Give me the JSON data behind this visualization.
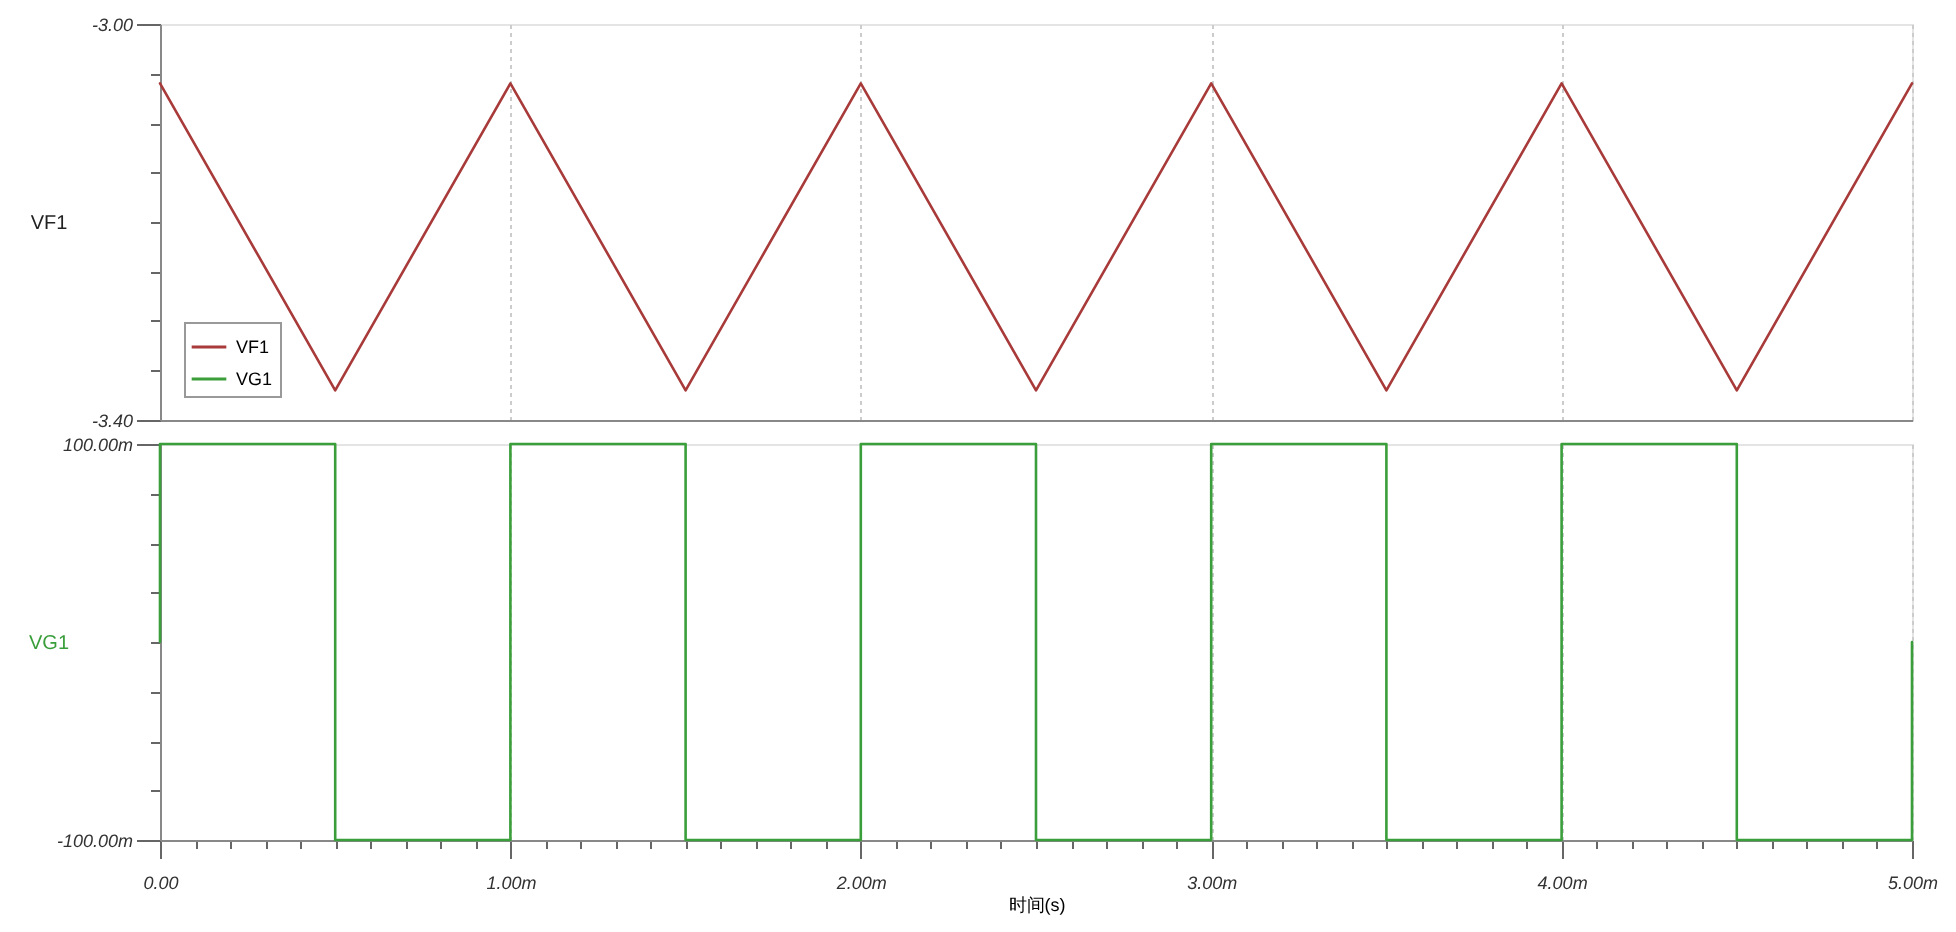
{
  "chart_data": [
    {
      "type": "line",
      "ylabel": "VF1",
      "legend": "bottom left",
      "grid": "x",
      "tick_labels": "y",
      "xlim": [
        0,
        5
      ],
      "xticks": [
        0,
        1,
        2,
        3,
        4,
        5
      ],
      "ylim": [
        -3.4,
        -3.0
      ],
      "yticks": [
        {
          "value": -3.4,
          "label": "-3.40"
        },
        {
          "value": -3.35,
          "label": null
        },
        {
          "value": -3.3,
          "label": null
        },
        {
          "value": -3.25,
          "label": null
        },
        {
          "value": -3.2,
          "label": null
        },
        {
          "value": -3.15,
          "label": null
        },
        {
          "value": -3.1,
          "label": null
        },
        {
          "value": -3.05,
          "label": null
        },
        {
          "value": -3.0,
          "label": "-3.00"
        }
      ],
      "series": [
        {
          "name": "VF1",
          "color": "#a83a3a",
          "x": [
            0,
            0.5,
            1,
            1.5,
            2,
            2.5,
            3,
            3.5,
            4,
            4.5,
            5
          ],
          "values": [
            -3.06,
            -3.37,
            -3.06,
            -3.37,
            -3.06,
            -3.37,
            -3.06,
            -3.37,
            -3.06,
            -3.37,
            -3.06
          ]
        }
      ]
    },
    {
      "type": "step",
      "ylabel": "VG1",
      "xlabel": "时间(s)",
      "grid": "x",
      "xlim": [
        0,
        5
      ],
      "xticks": [
        {
          "value": 0,
          "label": "0.00"
        },
        {
          "value": 1,
          "label": "1.00m"
        },
        {
          "value": 2,
          "label": "2.00m"
        },
        {
          "value": 3,
          "label": "3.00m"
        },
        {
          "value": 4,
          "label": "4.00m"
        },
        {
          "value": 5,
          "label": "5.00m"
        }
      ],
      "ylim": [
        -100,
        100
      ],
      "yticks": [
        {
          "value": -100,
          "label": "-100.00m"
        },
        {
          "value": -75,
          "label": null
        },
        {
          "value": -50,
          "label": null
        },
        {
          "value": -25,
          "label": null
        },
        {
          "value": 0,
          "label": null
        },
        {
          "value": 25,
          "label": null
        },
        {
          "value": 50,
          "label": null
        },
        {
          "value": 75,
          "label": null
        },
        {
          "value": 100,
          "label": "100.00m"
        }
      ],
      "series": [
        {
          "name": "VG1",
          "color": "#3a9e3a",
          "x": [
            0,
            0,
            0.5,
            1,
            1.5,
            2,
            2.5,
            3,
            3.5,
            4,
            4.5,
            5
          ],
          "values": [
            0,
            100,
            -100,
            100,
            -100,
            100,
            -100,
            100,
            -100,
            100,
            -100,
            0
          ]
        }
      ]
    }
  ]
}
